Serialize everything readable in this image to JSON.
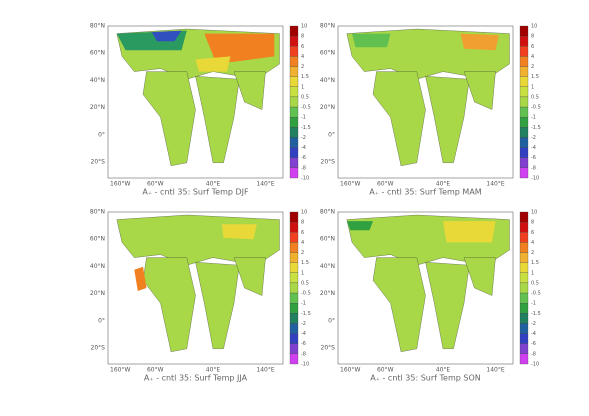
{
  "figure": {
    "panels": [
      {
        "title": "A₊ - cntl 35: Surf Temp DJF"
      },
      {
        "title": "A₊ - cntl 35: Surf Temp MAM"
      },
      {
        "title": "A₊ - cntl 35: Surf Temp JJA"
      },
      {
        "title": "A₊ - cntl 35: Surf Temp SON"
      }
    ],
    "lat_labels": [
      "80°N",
      "60°N",
      "40°N",
      "20°N",
      "0°",
      "20°S"
    ],
    "lon_labels": [
      "160°W",
      "60°W",
      "40°E",
      "140°E"
    ],
    "colorbar": {
      "ticks": [
        10,
        8,
        6,
        4,
        2,
        1.5,
        1,
        0.5,
        -0.5,
        -1,
        -1.5,
        -2,
        -4,
        -6,
        -8,
        -10
      ],
      "colors": [
        "#a00000",
        "#d01010",
        "#f04020",
        "#f08020",
        "#f0b030",
        "#e8d838",
        "#c8e040",
        "#a8d848",
        "#60c050",
        "#30a040",
        "#208060",
        "#2060a0",
        "#3040c0",
        "#8040d0",
        "#d040f0"
      ]
    }
  }
}
